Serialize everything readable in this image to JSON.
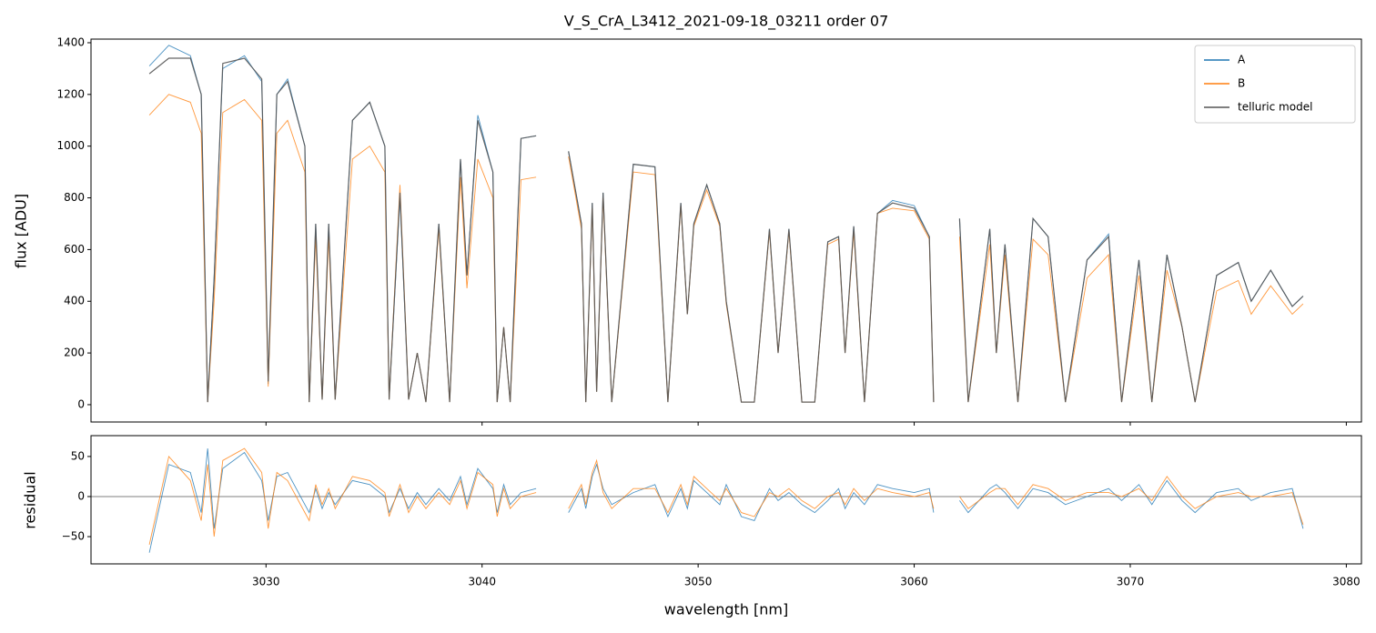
{
  "chart_data": [
    {
      "type": "line",
      "title": "V_S_CrA_L3412_2021-09-18_03211  order 07",
      "ylabel": "flux [ADU]",
      "x": [
        3024.6,
        3025.5,
        3026.5,
        3027.0,
        3027.3,
        3027.6,
        3028.0,
        3029.0,
        3029.8,
        3030.1,
        3030.5,
        3031.0,
        3031.8,
        3032.0,
        3032.3,
        3032.6,
        3032.9,
        3033.2,
        3034.0,
        3034.8,
        3035.5,
        3035.7,
        3036.2,
        3036.6,
        3037.0,
        3037.4,
        3038.0,
        3038.5,
        3039.0,
        3039.3,
        3039.8,
        3040.5,
        3040.7,
        3041.0,
        3041.3,
        3041.8,
        3042.5,
        3043.2,
        3044.0,
        3044.6,
        3044.8,
        3045.1,
        3045.3,
        3045.6,
        3046.0,
        3047.0,
        3048.0,
        3048.6,
        3049.2,
        3049.5,
        3049.8,
        3050.4,
        3051.0,
        3051.3,
        3052.0,
        3052.6,
        3053.3,
        3053.7,
        3054.2,
        3054.8,
        3055.4,
        3056.0,
        3056.5,
        3056.8,
        3057.2,
        3057.7,
        3058.3,
        3059.0,
        3060.0,
        3060.7,
        3060.9,
        3061.5,
        3062.1,
        3062.5,
        3063.5,
        3063.8,
        3064.2,
        3064.8,
        3065.5,
        3066.2,
        3067.0,
        3068.0,
        3069.0,
        3069.6,
        3070.4,
        3071.0,
        3071.7,
        3072.4,
        3073.0,
        3074.0,
        3075.0,
        3075.6,
        3076.5,
        3077.5,
        3078.0
      ],
      "series": [
        {
          "name": "A",
          "color": "#1f77b4",
          "values": [
            1310,
            1390,
            1350,
            1200,
            10,
            500,
            1300,
            1350,
            1250,
            80,
            1200,
            1260,
            1000,
            10,
            700,
            20,
            700,
            20,
            1100,
            1170,
            1000,
            20,
            800,
            20,
            200,
            10,
            700,
            10,
            950,
            500,
            1120,
            900,
            10,
            300,
            10,
            1030,
            1040,
            null,
            980,
            700,
            10,
            780,
            50,
            820,
            10,
            930,
            920,
            10,
            780,
            350,
            700,
            850,
            700,
            400,
            10,
            10,
            680,
            200,
            680,
            10,
            10,
            630,
            650,
            200,
            690,
            10,
            740,
            790,
            770,
            650,
            10,
            null,
            720,
            10,
            680,
            200,
            620,
            10,
            720,
            650,
            10,
            560,
            660,
            10,
            560,
            10,
            580,
            300,
            10,
            500,
            550,
            400,
            520,
            380,
            420
          ]
        },
        {
          "name": "B",
          "color": "#ff7f0e",
          "values": [
            1120,
            1200,
            1170,
            1050,
            10,
            400,
            1130,
            1180,
            1100,
            70,
            1050,
            1100,
            900,
            10,
            650,
            20,
            650,
            20,
            950,
            1000,
            900,
            20,
            850,
            20,
            200,
            10,
            680,
            10,
            880,
            450,
            950,
            800,
            10,
            300,
            10,
            870,
            880,
            null,
            960,
            680,
            10,
            760,
            50,
            800,
            10,
            900,
            890,
            10,
            770,
            350,
            690,
            830,
            690,
            390,
            10,
            10,
            670,
            200,
            670,
            10,
            10,
            620,
            640,
            200,
            670,
            10,
            740,
            760,
            750,
            640,
            10,
            null,
            650,
            10,
            620,
            200,
            580,
            10,
            640,
            580,
            10,
            490,
            580,
            10,
            500,
            10,
            520,
            300,
            10,
            440,
            480,
            350,
            460,
            350,
            390
          ]
        },
        {
          "name": "telluric model",
          "color": "#555555",
          "values": [
            1280,
            1340,
            1340,
            1200,
            10,
            480,
            1320,
            1340,
            1260,
            90,
            1200,
            1250,
            1000,
            10,
            700,
            20,
            700,
            20,
            1100,
            1170,
            1000,
            20,
            820,
            20,
            200,
            10,
            700,
            10,
            950,
            500,
            1100,
            900,
            10,
            300,
            10,
            1030,
            1040,
            null,
            980,
            700,
            10,
            780,
            50,
            820,
            10,
            930,
            920,
            10,
            780,
            350,
            700,
            850,
            700,
            400,
            10,
            10,
            680,
            200,
            680,
            10,
            10,
            630,
            650,
            200,
            690,
            10,
            740,
            780,
            760,
            650,
            10,
            null,
            720,
            10,
            680,
            200,
            620,
            10,
            720,
            650,
            10,
            560,
            650,
            10,
            560,
            10,
            580,
            300,
            10,
            500,
            550,
            400,
            520,
            380,
            420
          ]
        }
      ],
      "xlim": [
        3021.9,
        3080.7
      ],
      "ylim": [
        -67,
        1414
      ],
      "yticks": [
        0,
        200,
        400,
        600,
        800,
        1000,
        1200,
        1400
      ],
      "legend": "upper right"
    },
    {
      "type": "line",
      "xlabel": "wavelength [nm]",
      "ylabel": "residual",
      "x": [
        3024.6,
        3025.5,
        3026.5,
        3027.0,
        3027.3,
        3027.6,
        3028.0,
        3029.0,
        3029.8,
        3030.1,
        3030.5,
        3031.0,
        3031.8,
        3032.0,
        3032.3,
        3032.6,
        3032.9,
        3033.2,
        3034.0,
        3034.8,
        3035.5,
        3035.7,
        3036.2,
        3036.6,
        3037.0,
        3037.4,
        3038.0,
        3038.5,
        3039.0,
        3039.3,
        3039.8,
        3040.5,
        3040.7,
        3041.0,
        3041.3,
        3041.8,
        3042.5,
        3043.2,
        3044.0,
        3044.6,
        3044.8,
        3045.1,
        3045.3,
        3045.6,
        3046.0,
        3047.0,
        3048.0,
        3048.6,
        3049.2,
        3049.5,
        3049.8,
        3050.4,
        3051.0,
        3051.3,
        3052.0,
        3052.6,
        3053.3,
        3053.7,
        3054.2,
        3054.8,
        3055.4,
        3056.0,
        3056.5,
        3056.8,
        3057.2,
        3057.7,
        3058.3,
        3059.0,
        3060.0,
        3060.7,
        3060.9,
        3061.5,
        3062.1,
        3062.5,
        3063.5,
        3063.8,
        3064.2,
        3064.8,
        3065.5,
        3066.2,
        3067.0,
        3068.0,
        3069.0,
        3069.6,
        3070.4,
        3071.0,
        3071.7,
        3072.4,
        3073.0,
        3074.0,
        3075.0,
        3075.6,
        3076.5,
        3077.5,
        3078.0
      ],
      "series": [
        {
          "name": "A",
          "color": "#1f77b4",
          "values": [
            -70,
            40,
            30,
            -20,
            60,
            -40,
            35,
            55,
            20,
            -30,
            25,
            30,
            -10,
            -20,
            10,
            -15,
            5,
            -10,
            20,
            15,
            0,
            -20,
            10,
            -15,
            5,
            -10,
            10,
            -5,
            25,
            -10,
            35,
            10,
            -20,
            15,
            -10,
            5,
            10,
            null,
            -20,
            10,
            -15,
            25,
            40,
            10,
            -10,
            5,
            15,
            -25,
            10,
            -15,
            20,
            5,
            -10,
            15,
            -25,
            -30,
            10,
            -5,
            5,
            -10,
            -20,
            -5,
            10,
            -15,
            5,
            -10,
            15,
            10,
            5,
            10,
            -20,
            null,
            -5,
            -20,
            10,
            15,
            5,
            -15,
            10,
            5,
            -10,
            0,
            10,
            -5,
            15,
            -10,
            20,
            -5,
            -20,
            5,
            10,
            -5,
            5,
            10,
            -40
          ]
        },
        {
          "name": "B",
          "color": "#ff7f0e",
          "values": [
            -60,
            50,
            20,
            -30,
            40,
            -50,
            45,
            60,
            30,
            -40,
            30,
            20,
            -20,
            -30,
            15,
            -10,
            10,
            -15,
            25,
            20,
            5,
            -25,
            15,
            -20,
            0,
            -15,
            5,
            -10,
            20,
            -15,
            30,
            15,
            -25,
            10,
            -15,
            0,
            5,
            null,
            -15,
            15,
            -10,
            30,
            45,
            5,
            -15,
            10,
            10,
            -20,
            15,
            -10,
            25,
            10,
            -5,
            10,
            -20,
            -25,
            5,
            0,
            10,
            -5,
            -15,
            0,
            5,
            -10,
            10,
            -5,
            10,
            5,
            0,
            5,
            -15,
            null,
            0,
            -15,
            5,
            10,
            10,
            -10,
            15,
            10,
            -5,
            5,
            5,
            0,
            10,
            -5,
            25,
            0,
            -15,
            0,
            5,
            0,
            0,
            5,
            -35
          ]
        }
      ],
      "xlim": [
        3021.9,
        3080.7
      ],
      "ylim": [
        -84,
        76
      ],
      "yticks": [
        {
          "value": -50,
          "label": "−50"
        },
        0,
        50
      ],
      "xticks": [
        3030,
        3040,
        3050,
        3060,
        3070,
        3080
      ]
    }
  ]
}
